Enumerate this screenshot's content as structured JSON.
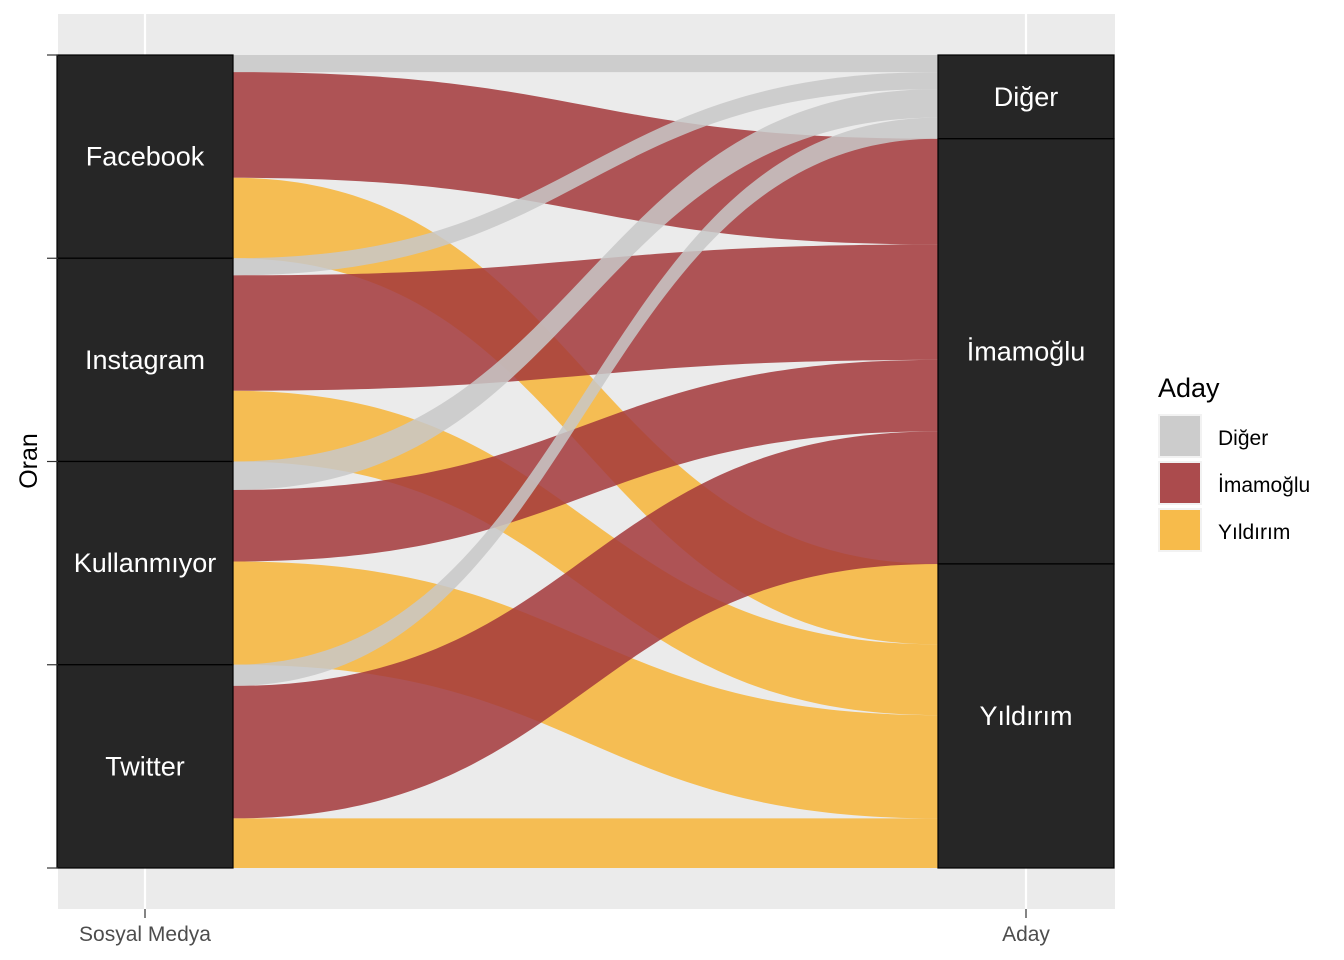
{
  "chart_data": {
    "type": "alluvial",
    "ylabel": "Oran",
    "axes": [
      {
        "name": "Sosyal Medya",
        "strata": [
          "Facebook",
          "Instagram",
          "Kullanmıyor",
          "Twitter"
        ]
      },
      {
        "name": "Aday",
        "strata": [
          "Diğer",
          "İmamoğlu",
          "Yıldırım"
        ]
      }
    ],
    "legend": {
      "title": "Aday",
      "position": "right",
      "entries": [
        {
          "label": "Diğer",
          "color": "#c8c8c8"
        },
        {
          "label": "İmamoğlu",
          "color": "#a3383b"
        },
        {
          "label": "Yıldırım",
          "color": "#f7b538"
        }
      ]
    },
    "stratum_color": "#262626",
    "flows": [
      {
        "from": "Facebook",
        "to": "Diğer",
        "value": 0.021
      },
      {
        "from": "Facebook",
        "to": "İmamoğlu",
        "value": 0.13
      },
      {
        "from": "Facebook",
        "to": "Yıldırım",
        "value": 0.099
      },
      {
        "from": "Instagram",
        "to": "Diğer",
        "value": 0.021
      },
      {
        "from": "Instagram",
        "to": "İmamoğlu",
        "value": 0.142
      },
      {
        "from": "Instagram",
        "to": "Yıldırım",
        "value": 0.087
      },
      {
        "from": "Kullanmıyor",
        "to": "Diğer",
        "value": 0.035
      },
      {
        "from": "Kullanmıyor",
        "to": "İmamoğlu",
        "value": 0.088
      },
      {
        "from": "Kullanmıyor",
        "to": "Yıldırım",
        "value": 0.127
      },
      {
        "from": "Twitter",
        "to": "Diğer",
        "value": 0.026
      },
      {
        "from": "Twitter",
        "to": "İmamoğlu",
        "value": 0.163
      },
      {
        "from": "Twitter",
        "to": "Yıldırım",
        "value": 0.061
      }
    ],
    "ylim": [
      0,
      1
    ],
    "grid": true
  }
}
